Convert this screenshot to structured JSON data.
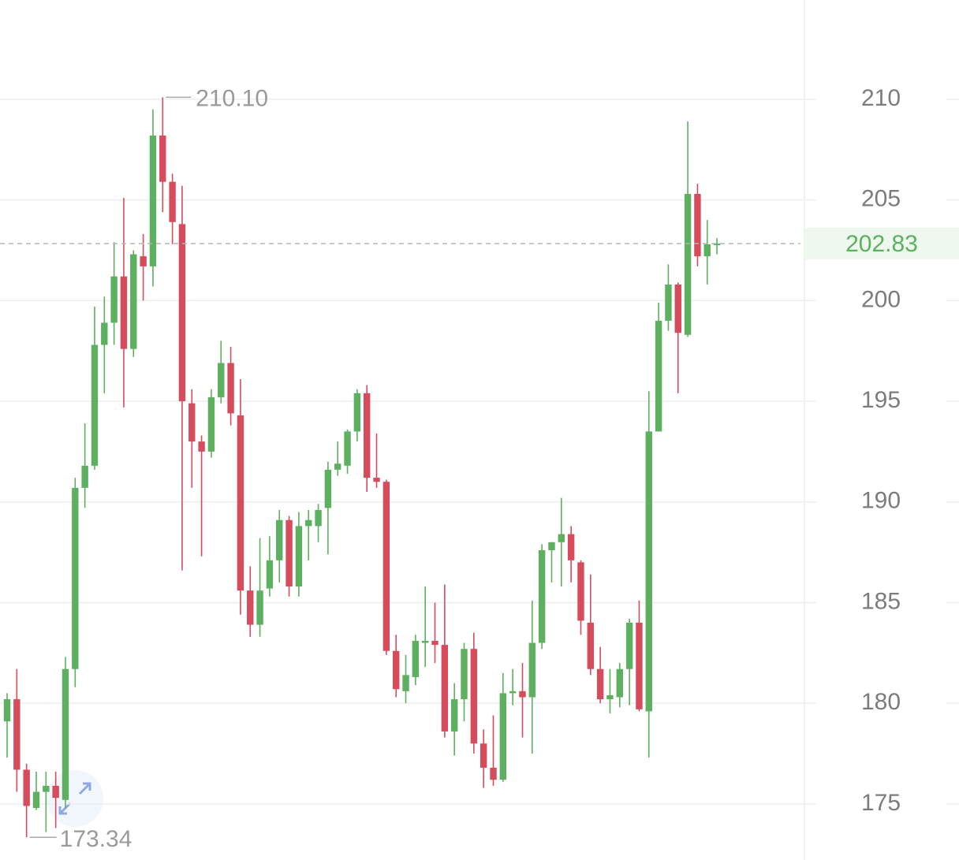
{
  "chart_data": {
    "type": "candlestick",
    "open": [
      179.1,
      180.2,
      176.7,
      174.8,
      175.6,
      175.9,
      175.2,
      181.7,
      190.7,
      191.8,
      197.8,
      198.9,
      201.2,
      197.6,
      202.2,
      201.7,
      208.2,
      205.9,
      203.8,
      194.9,
      193.0,
      192.5,
      195.2,
      196.9,
      194.3,
      185.6,
      183.9,
      185.7,
      187.1,
      189.1,
      185.8,
      188.8,
      188.8,
      189.7,
      191.6,
      191.8,
      193.5,
      195.4,
      191.2,
      191.0,
      182.6,
      180.6,
      181.3,
      183.0,
      183.1,
      182.9,
      178.6,
      180.2,
      182.7,
      178.0,
      176.8,
      176.2,
      180.5,
      180.6,
      180.3,
      183.0,
      187.6,
      188.0,
      188.4,
      187.0,
      184.0,
      181.7,
      180.2,
      180.3,
      181.7,
      184.0,
      179.6,
      193.5,
      199.0,
      200.8,
      198.3,
      205.3,
      202.2,
      202.8
    ],
    "high": [
      180.5,
      181.7,
      177.0,
      176.6,
      176.6,
      176.6,
      182.3,
      191.2,
      193.9,
      199.7,
      200.2,
      202.9,
      205.1,
      202.5,
      203.3,
      209.5,
      210.1,
      206.3,
      205.7,
      195.6,
      193.3,
      195.6,
      198.0,
      197.7,
      196.1,
      186.8,
      188.2,
      188.3,
      189.6,
      189.3,
      189.5,
      189.6,
      189.9,
      192.0,
      193.0,
      193.6,
      195.6,
      195.8,
      193.4,
      191.1,
      183.4,
      182.4,
      183.4,
      185.8,
      185.0,
      185.9,
      181.0,
      183.0,
      183.5,
      178.7,
      179.4,
      181.5,
      181.7,
      182.0,
      185.1,
      187.9,
      188.0,
      190.2,
      188.8,
      187.1,
      186.4,
      182.8,
      181.7,
      182.0,
      184.2,
      185.1,
      195.5,
      199.9,
      201.8,
      200.9,
      208.9,
      205.8,
      204.0,
      203.1
    ],
    "low": [
      177.3,
      175.6,
      173.34,
      174.7,
      173.6,
      173.8,
      174.8,
      180.8,
      189.7,
      191.6,
      195.4,
      197.8,
      194.7,
      197.2,
      200.0,
      200.7,
      204.4,
      202.8,
      186.6,
      190.7,
      187.3,
      192.2,
      194.9,
      193.8,
      184.4,
      183.3,
      183.3,
      185.3,
      186.0,
      185.3,
      185.3,
      187.1,
      188.0,
      187.4,
      191.3,
      191.4,
      193.0,
      190.5,
      190.7,
      182.4,
      180.3,
      180.0,
      180.9,
      181.8,
      182.0,
      178.3,
      177.4,
      179.1,
      177.5,
      175.8,
      175.9,
      176.1,
      179.9,
      178.3,
      177.5,
      182.7,
      186.0,
      185.8,
      186.0,
      183.4,
      181.4,
      180.0,
      179.5,
      179.8,
      179.9,
      179.6,
      177.3,
      193.5,
      198.5,
      195.4,
      198.2,
      201.7,
      200.8,
      202.3
    ],
    "close": [
      180.2,
      176.7,
      174.9,
      175.6,
      175.9,
      175.3,
      181.7,
      190.7,
      191.8,
      197.8,
      198.9,
      201.2,
      197.6,
      202.3,
      201.7,
      208.2,
      205.9,
      203.9,
      195.0,
      193.0,
      192.5,
      195.2,
      196.9,
      194.4,
      185.6,
      183.9,
      185.6,
      187.1,
      189.1,
      185.8,
      188.8,
      189.1,
      189.6,
      191.6,
      191.9,
      193.5,
      195.4,
      191.2,
      191.0,
      182.6,
      180.7,
      181.4,
      183.1,
      183.1,
      182.9,
      178.6,
      180.2,
      182.7,
      178.0,
      176.8,
      176.2,
      180.5,
      180.6,
      180.3,
      183.0,
      187.6,
      188.0,
      188.4,
      187.1,
      184.1,
      181.7,
      180.2,
      180.4,
      181.7,
      184.0,
      179.7,
      193.5,
      199.0,
      200.8,
      198.4,
      205.3,
      202.2,
      202.8,
      202.83
    ],
    "up_color": "#5cb05f",
    "down_color": "#d64c5c",
    "ylim": [
      172.45,
      214.93
    ],
    "yticks": [
      175,
      180,
      185,
      190,
      195,
      200,
      205,
      210
    ],
    "grid": true,
    "last_price": 202.83,
    "max_annotation": {
      "value": 210.1,
      "label": "210.10"
    },
    "min_annotation": 173.34
  }
}
